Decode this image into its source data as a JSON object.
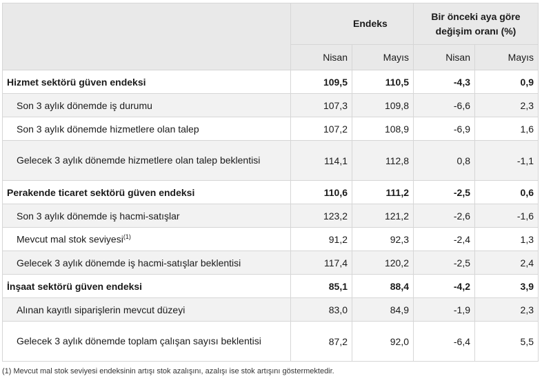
{
  "header": {
    "endeks": "Endeks",
    "change_line1": "Bir önceki aya göre",
    "change_line2": "değişim oranı (%)",
    "nisan": "Nisan",
    "mayis": "Mayıs"
  },
  "rows": [
    {
      "label": "Hizmet sektörü güven endeksi",
      "v1": "109,5",
      "v2": "110,5",
      "c1": "-4,3",
      "c2": "0,9"
    },
    {
      "label": "Son 3 aylık dönemde iş durumu",
      "v1": "107,3",
      "v2": "109,8",
      "c1": "-6,6",
      "c2": "2,3"
    },
    {
      "label": "Son 3 aylık dönemde hizmetlere olan talep",
      "v1": "107,2",
      "v2": "108,9",
      "c1": "-6,9",
      "c2": "1,6"
    },
    {
      "label": "Gelecek 3 aylık dönemde hizmetlere olan talep beklentisi",
      "v1": "114,1",
      "v2": "112,8",
      "c1": "0,8",
      "c2": "-1,1"
    },
    {
      "label": "Perakende ticaret sektörü güven endeksi",
      "v1": "110,6",
      "v2": "111,2",
      "c1": "-2,5",
      "c2": "0,6"
    },
    {
      "label": "Son 3 aylık dönemde iş hacmi-satışlar",
      "v1": "123,2",
      "v2": "121,2",
      "c1": "-2,6",
      "c2": "-1,6"
    },
    {
      "label": "Mevcut mal stok seviyesi",
      "sup": "(1)",
      "v1": "91,2",
      "v2": "92,3",
      "c1": "-2,4",
      "c2": "1,3"
    },
    {
      "label": "Gelecek 3 aylık dönemde iş hacmi-satışlar beklentisi",
      "v1": "117,4",
      "v2": "120,2",
      "c1": "-2,5",
      "c2": "2,4"
    },
    {
      "label": "İnşaat sektörü güven endeksi",
      "v1": "85,1",
      "v2": "88,4",
      "c1": "-4,2",
      "c2": "3,9"
    },
    {
      "label": "Alınan kayıtlı siparişlerin mevcut düzeyi",
      "v1": "83,0",
      "v2": "84,9",
      "c1": "-1,9",
      "c2": "2,3"
    },
    {
      "label": "Gelecek 3 aylık dönemde toplam çalışan sayısı beklentisi",
      "v1": "87,2",
      "v2": "92,0",
      "c1": "-6,4",
      "c2": "5,5"
    }
  ],
  "footnote": "(1) Mevcut mal stok seviyesi endeksinin artışı stok azalışını, azalışı ise stok artışını göstermektedir."
}
